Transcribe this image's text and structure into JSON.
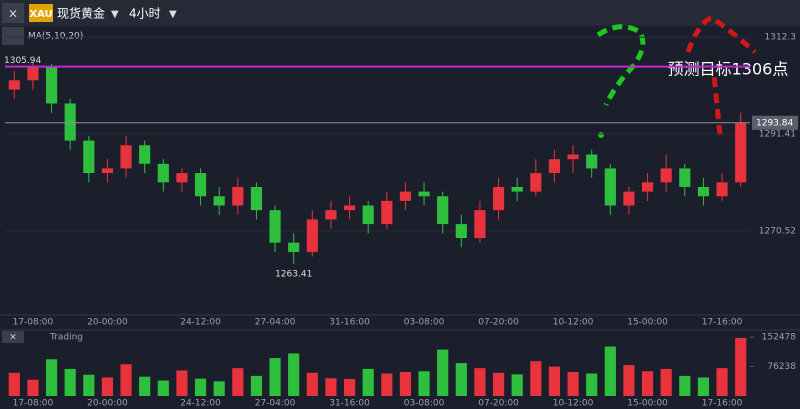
{
  "toolbar": {
    "symbol_badge": "XAU",
    "symbol": "现货黄金",
    "period": "4小时"
  },
  "indicator_label": "MA(5,10,20)",
  "volume_label": "Trading",
  "annotation": "预测目标1306点",
  "chart_data": [
    {
      "type": "candlestick",
      "categories": [
        null,
        "17-08:00",
        null,
        null,
        null,
        "20-00:00",
        null,
        null,
        null,
        null,
        "24-12:00",
        null,
        null,
        null,
        "27-04:00",
        null,
        null,
        null,
        "31-16:00",
        null,
        null,
        null,
        "03-08:00",
        null,
        null,
        null,
        "07-20:00",
        null,
        null,
        null,
        "10-12:00",
        null,
        null,
        null,
        "15-00:00",
        null,
        null,
        null,
        "17-16:00",
        null
      ],
      "open": [
        1301,
        1303,
        1305.9,
        1298,
        1290,
        1283,
        1284,
        1289,
        1285,
        1281,
        1283,
        1278,
        1276,
        1280,
        1275,
        1268,
        1266,
        1273,
        1275,
        1276,
        1272,
        1277,
        1279,
        1278,
        1272,
        1269,
        1275,
        1280,
        1279,
        1283,
        1286,
        1287,
        1284,
        1276,
        1279,
        1281,
        1284,
        1280,
        1278,
        1281
      ],
      "high": [
        1305,
        1307,
        1306.5,
        1299,
        1291,
        1286,
        1291,
        1290,
        1286,
        1284,
        1284,
        1280,
        1282,
        1281,
        1276,
        1270,
        1275,
        1277,
        1278,
        1277,
        1279,
        1281,
        1281,
        1279,
        1274,
        1277,
        1282,
        1282,
        1286,
        1288,
        1289,
        1288,
        1285,
        1280,
        1283,
        1287,
        1285,
        1282,
        1283,
        1296
      ],
      "low": [
        1299,
        1301,
        1296,
        1288,
        1281,
        1281,
        1282,
        1283,
        1279,
        1279,
        1276,
        1274,
        1274,
        1273,
        1266,
        1263.41,
        1265,
        1271,
        1273,
        1270,
        1271,
        1275,
        1276,
        1270,
        1267,
        1268,
        1273,
        1277,
        1278,
        1281,
        1283,
        1282,
        1274,
        1274,
        1277,
        1279,
        1278,
        1276,
        1277,
        1280
      ],
      "close": [
        1303,
        1305.9,
        1298,
        1290,
        1283,
        1284,
        1289,
        1285,
        1281,
        1283,
        1278,
        1276,
        1280,
        1275,
        1268,
        1266,
        1273,
        1275,
        1276,
        1272,
        1277,
        1279,
        1278,
        1272,
        1269,
        1275,
        1280,
        1279,
        1283,
        1286,
        1287,
        1284,
        1276,
        1279,
        1281,
        1284,
        1280,
        1278,
        1281,
        1293.84
      ],
      "ylim": [
        1252.4,
        1316.0
      ],
      "yticks": [
        1312.3,
        1291.41,
        1270.52
      ],
      "up_color": "#e8323c",
      "down_color": "#2fbf3f",
      "price_lines": [
        {
          "value": 1305.94,
          "color": "#c026d3"
        },
        {
          "value": 1293.84,
          "color": "#8a8f99"
        }
      ],
      "low_marker": 1263.41
    },
    {
      "type": "bar",
      "values": [
        60000,
        42000,
        95000,
        70000,
        55000,
        48000,
        82000,
        50000,
        40000,
        66000,
        45000,
        38000,
        72000,
        52000,
        98000,
        110000,
        60000,
        46000,
        44000,
        70000,
        58000,
        62000,
        64000,
        120000,
        85000,
        72000,
        60000,
        56000,
        90000,
        76000,
        62000,
        58000,
        128000,
        80000,
        64000,
        70000,
        52000,
        48000,
        72000,
        150000
      ],
      "ylim": [
        0,
        168000
      ],
      "yticks": [
        76238,
        152478
      ]
    }
  ]
}
